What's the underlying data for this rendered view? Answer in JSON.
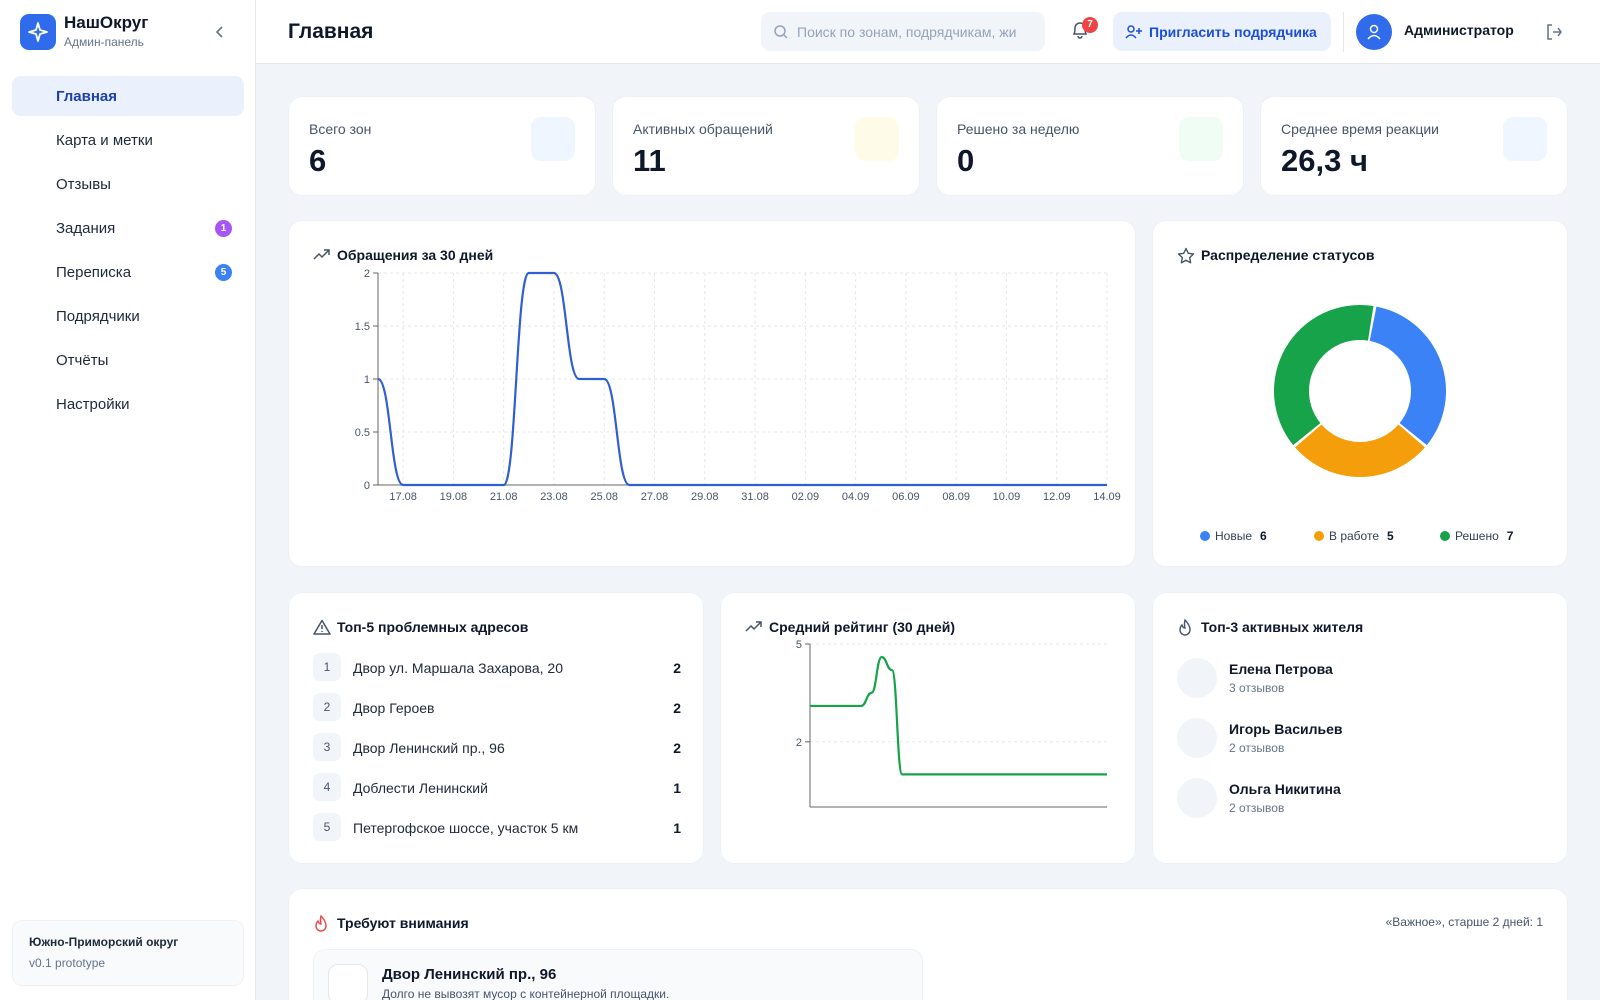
{
  "brand": {
    "title": "НашОкруг",
    "subtitle": "Админ-панель"
  },
  "nav": [
    {
      "label": "Главная"
    },
    {
      "label": "Карта и метки"
    },
    {
      "label": "Отзывы"
    },
    {
      "label": "Задания",
      "badge": 1
    },
    {
      "label": "Переписка",
      "badge": 5
    },
    {
      "label": "Подрядчики"
    },
    {
      "label": "Отчёты"
    },
    {
      "label": "Настройки"
    }
  ],
  "sidebar_footer": {
    "district": "Южно-Приморский округ",
    "version": "v0.1 prototype"
  },
  "header": {
    "title": "Главная",
    "search_placeholder": "Поиск по зонам, подрядчикам, жи",
    "notifications": 7,
    "invite_button": "Пригласить подрядчика",
    "user": "Администратор"
  },
  "stats": [
    {
      "label": "Всего зон",
      "value": 6
    },
    {
      "label": "Активных обращений",
      "value": 11
    },
    {
      "label": "Решено за неделю",
      "value": 0
    },
    {
      "label": "Среднее время реакции",
      "value": "26,3 ч"
    }
  ],
  "chart_data": [
    {
      "type": "line",
      "title": "Обращения за 30 дней",
      "categories": [
        null,
        "17.08",
        null,
        "19.08",
        null,
        "21.08",
        null,
        "23.08",
        null,
        "25.08",
        null,
        "27.08",
        null,
        "29.08",
        null,
        "31.08",
        null,
        "02.09",
        null,
        "04.09",
        null,
        "06.09",
        null,
        "08.09",
        null,
        "10.09",
        null,
        "12.09",
        null,
        "14.09"
      ],
      "values": [
        1,
        0,
        0,
        0,
        0,
        0,
        2,
        2,
        1,
        1,
        0,
        0,
        0,
        0,
        0,
        0,
        0,
        0,
        0,
        0,
        0,
        0,
        0,
        0,
        0,
        0,
        0,
        0,
        0,
        0
      ],
      "color": "#2f5fd0",
      "ylim": [
        0,
        2
      ],
      "yticks": [
        0,
        0.5,
        1,
        1.5,
        2
      ],
      "grid": true
    },
    {
      "type": "donut",
      "title": "Распределение статусов",
      "categories": [
        "Новые",
        "В работе",
        "Решено"
      ],
      "values": [
        6,
        5,
        7
      ],
      "colors": [
        "#3b82f6",
        "#f59e0b",
        "#16a34a"
      ]
    },
    {
      "type": "line",
      "title": "Средний рейтинг (30 дней)",
      "categories": [
        null,
        null,
        null,
        null,
        null,
        null,
        null,
        null,
        null,
        null,
        null,
        null,
        null,
        null,
        null,
        null,
        null,
        null,
        null,
        null,
        null,
        null,
        null,
        null,
        null,
        null,
        null,
        null,
        null,
        null
      ],
      "values": [
        3.1,
        3.1,
        3.1,
        3.1,
        3.1,
        3.1,
        3.5,
        4.6,
        4.2,
        1,
        1,
        1,
        1,
        1,
        1,
        1,
        1,
        1,
        1,
        1,
        1,
        1,
        1,
        1,
        1,
        1,
        1,
        1,
        1,
        1
      ],
      "color": "#16a34a",
      "ylim": [
        0,
        5
      ],
      "yticks": [
        2,
        5
      ],
      "grid": true
    }
  ],
  "top_addresses": {
    "title": "Топ-5 проблемных адресов",
    "items": [
      {
        "rank": 1,
        "name": "Двор ул. Маршала Захарова, 20",
        "count": 2
      },
      {
        "rank": 2,
        "name": "Двор Героев",
        "count": 2
      },
      {
        "rank": 3,
        "name": "Двор Ленинский пр., 96",
        "count": 2
      },
      {
        "rank": 4,
        "name": "Доблести Ленинский",
        "count": 1
      },
      {
        "rank": 5,
        "name": "Петергофское шоссе, участок 5 км",
        "count": 1
      }
    ]
  },
  "top_residents": {
    "title": "Топ-3 активных жителя",
    "items": [
      {
        "name": "Елена Петрова",
        "reviews": "3 отзывов"
      },
      {
        "name": "Игорь Васильев",
        "reviews": "2 отзывов"
      },
      {
        "name": "Ольга Никитина",
        "reviews": "2 отзывов"
      }
    ]
  },
  "attention": {
    "title": "Требуют внимания",
    "note": "«Важное», старше 2 дней: 1",
    "items": [
      {
        "title": "Двор Ленинский пр., 96",
        "text": "Долго не вывозят мусор с контейнерной площадки."
      }
    ]
  }
}
